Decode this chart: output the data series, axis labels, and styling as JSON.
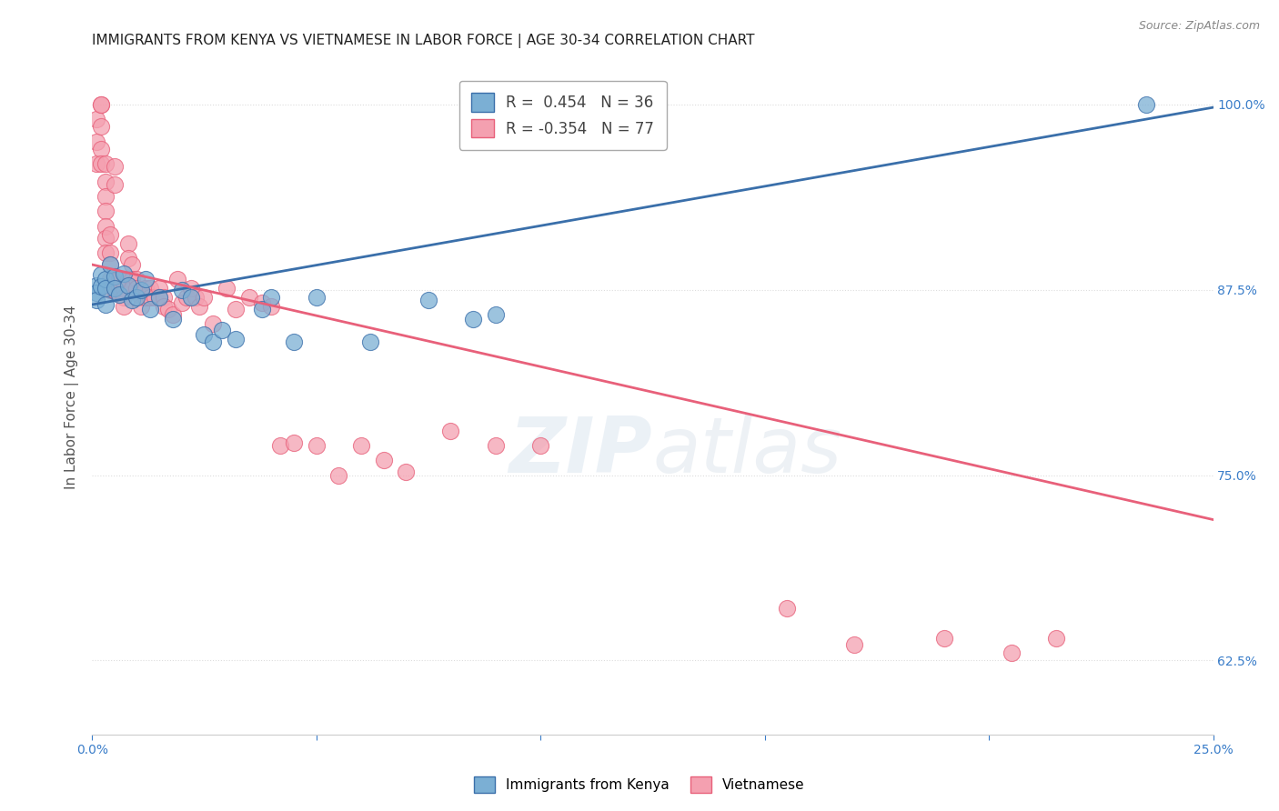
{
  "title": "IMMIGRANTS FROM KENYA VS VIETNAMESE IN LABOR FORCE | AGE 30-34 CORRELATION CHART",
  "source": "Source: ZipAtlas.com",
  "ylabel": "In Labor Force | Age 30-34",
  "xlim": [
    0.0,
    0.25
  ],
  "ylim": [
    0.575,
    1.03
  ],
  "xticks": [
    0.0,
    0.05,
    0.1,
    0.15,
    0.2,
    0.25
  ],
  "xtick_labels": [
    "0.0%",
    "",
    "",
    "",
    "",
    "25.0%"
  ],
  "yticks": [
    0.625,
    0.75,
    0.875,
    1.0
  ],
  "ytick_labels": [
    "62.5%",
    "75.0%",
    "87.5%",
    "100.0%"
  ],
  "kenya_R": 0.454,
  "kenya_N": 36,
  "viet_R": -0.354,
  "viet_N": 77,
  "kenya_color": "#7bafd4",
  "viet_color": "#f4a0b0",
  "kenya_line_color": "#3a6faa",
  "viet_line_color": "#e8607a",
  "kenya_x": [
    0.001,
    0.001,
    0.001,
    0.002,
    0.002,
    0.003,
    0.003,
    0.003,
    0.004,
    0.005,
    0.005,
    0.006,
    0.007,
    0.008,
    0.009,
    0.01,
    0.011,
    0.012,
    0.013,
    0.015,
    0.018,
    0.02,
    0.022,
    0.025,
    0.027,
    0.029,
    0.032,
    0.038,
    0.04,
    0.045,
    0.05,
    0.062,
    0.075,
    0.085,
    0.09,
    0.235
  ],
  "kenya_y": [
    0.878,
    0.873,
    0.868,
    0.885,
    0.877,
    0.882,
    0.876,
    0.865,
    0.892,
    0.884,
    0.876,
    0.872,
    0.886,
    0.878,
    0.868,
    0.87,
    0.875,
    0.882,
    0.862,
    0.87,
    0.855,
    0.875,
    0.87,
    0.845,
    0.84,
    0.848,
    0.842,
    0.862,
    0.87,
    0.84,
    0.87,
    0.84,
    0.868,
    0.855,
    0.858,
    1.0
  ],
  "viet_x": [
    0.001,
    0.001,
    0.001,
    0.002,
    0.002,
    0.002,
    0.002,
    0.002,
    0.003,
    0.003,
    0.003,
    0.003,
    0.003,
    0.003,
    0.003,
    0.004,
    0.004,
    0.004,
    0.004,
    0.004,
    0.005,
    0.005,
    0.005,
    0.006,
    0.006,
    0.007,
    0.007,
    0.007,
    0.008,
    0.008,
    0.008,
    0.009,
    0.009,
    0.009,
    0.01,
    0.01,
    0.011,
    0.011,
    0.012,
    0.012,
    0.013,
    0.013,
    0.014,
    0.015,
    0.015,
    0.016,
    0.016,
    0.017,
    0.018,
    0.019,
    0.02,
    0.021,
    0.022,
    0.023,
    0.024,
    0.025,
    0.027,
    0.03,
    0.032,
    0.035,
    0.038,
    0.04,
    0.042,
    0.045,
    0.05,
    0.055,
    0.06,
    0.065,
    0.07,
    0.08,
    0.09,
    0.1,
    0.155,
    0.17,
    0.19,
    0.205,
    0.215
  ],
  "viet_y": [
    0.99,
    0.975,
    0.96,
    1.0,
    1.0,
    0.985,
    0.97,
    0.96,
    0.96,
    0.948,
    0.938,
    0.928,
    0.918,
    0.91,
    0.9,
    0.912,
    0.9,
    0.892,
    0.882,
    0.875,
    0.958,
    0.946,
    0.875,
    0.882,
    0.876,
    0.876,
    0.87,
    0.864,
    0.906,
    0.896,
    0.882,
    0.892,
    0.882,
    0.876,
    0.882,
    0.876,
    0.87,
    0.864,
    0.876,
    0.87,
    0.876,
    0.87,
    0.87,
    0.876,
    0.87,
    0.87,
    0.864,
    0.862,
    0.858,
    0.882,
    0.866,
    0.87,
    0.876,
    0.87,
    0.864,
    0.87,
    0.852,
    0.876,
    0.862,
    0.87,
    0.866,
    0.864,
    0.77,
    0.772,
    0.77,
    0.75,
    0.77,
    0.76,
    0.752,
    0.78,
    0.77,
    0.77,
    0.66,
    0.636,
    0.64,
    0.63,
    0.64
  ],
  "background_color": "#ffffff",
  "grid_color": "#dddddd",
  "title_fontsize": 11,
  "axis_label_fontsize": 11,
  "tick_fontsize": 10,
  "legend_fontsize": 12,
  "kenya_line_x": [
    0.0,
    0.25
  ],
  "kenya_line_y": [
    0.865,
    0.998
  ],
  "viet_line_x": [
    0.0,
    0.25
  ],
  "viet_line_y": [
    0.892,
    0.72
  ]
}
